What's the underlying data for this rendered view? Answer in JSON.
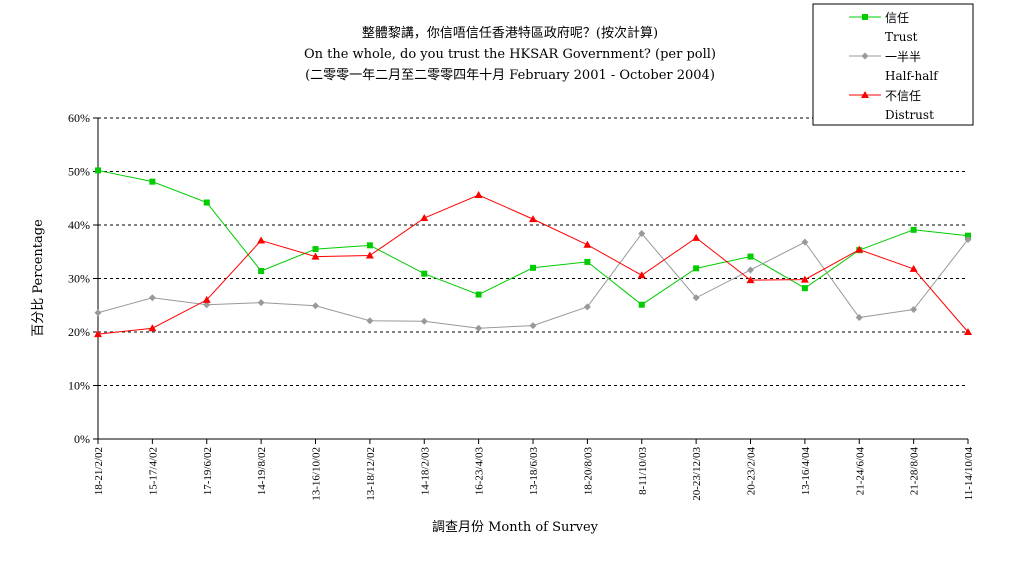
{
  "chart_data": {
    "type": "line",
    "title": "整體黎講，你信唔信任香港特區政府呢？(按次計算)",
    "subtitle": "On the whole, do you trust the HKSAR Government? (per poll)",
    "subtitle2": "(二零零一年二月至二零零四年十月 February 2001 - October 2004)",
    "xlabel": "調查月份 Month of Survey",
    "ylabel": "百分比 Percentage",
    "ylim": [
      0,
      60
    ],
    "yticks": [
      "0%",
      "10%",
      "20%",
      "30%",
      "40%",
      "50%",
      "60%"
    ],
    "yticks_values": [
      0,
      10,
      20,
      30,
      40,
      50,
      60
    ],
    "grid": "horizontal-dashed",
    "legend_position": "top-right",
    "categories": [
      "18-21/2/02",
      "15-17/4/02",
      "17-19/6/02",
      "14-19/8/02",
      "13-16/10/02",
      "13-18/12/02",
      "14-18/2/03",
      "16-23/4/03",
      "13-18/6/03",
      "18-20/8/03",
      "8-11/10/03",
      "20-23/12/03",
      "20-23/2/04",
      "13-16/4/04",
      "21-24/6/04",
      "21-28/8/04",
      "11-14/10/04"
    ],
    "series": [
      {
        "name": "信任",
        "name_en": "Trust",
        "color": "#00cc00",
        "marker": "square",
        "values": [
          50.2,
          48.1,
          44.2,
          31.4,
          35.5,
          36.2,
          30.9,
          27.0,
          32.0,
          33.1,
          25.1,
          31.9,
          34.1,
          28.2,
          35.3,
          39.1,
          38.0
        ]
      },
      {
        "name": "一半半",
        "name_en": "Half-half",
        "color": "#999999",
        "marker": "diamond",
        "values": [
          23.6,
          26.4,
          25.1,
          25.5,
          24.9,
          22.1,
          22.0,
          20.7,
          21.2,
          24.7,
          38.4,
          26.4,
          31.6,
          36.8,
          22.7,
          24.2,
          37.3
        ]
      },
      {
        "name": "不信任",
        "name_en": "Distrust",
        "color": "#ff0000",
        "marker": "triangle",
        "values": [
          19.6,
          20.7,
          26.0,
          37.1,
          34.1,
          34.3,
          41.3,
          45.6,
          41.1,
          36.3,
          30.6,
          37.6,
          29.7,
          29.8,
          35.4,
          31.8,
          20.0
        ]
      }
    ]
  }
}
